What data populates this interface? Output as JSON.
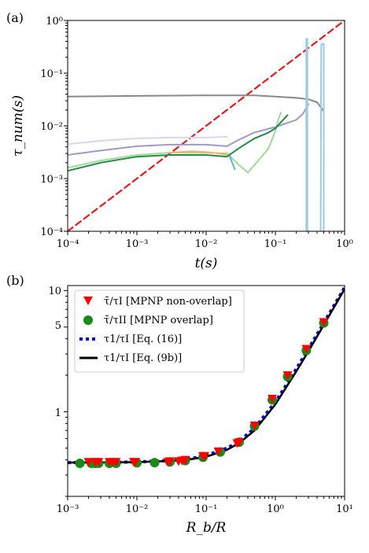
{
  "chart_data": [
    {
      "panel_label": "(a)",
      "type": "line",
      "xscale": "log",
      "yscale": "log",
      "xlim": [
        0.0001,
        1
      ],
      "ylim": [
        0.0001,
        1
      ],
      "xlabel": "t(s)",
      "ylabel": "τ_num(s)",
      "xtick_labels": [
        "10⁻⁴",
        "10⁻³",
        "10⁻²",
        "10⁻¹",
        "10⁰"
      ],
      "ytick_labels": [
        "10⁻⁴",
        "10⁻³",
        "10⁻²",
        "10⁻¹",
        "10⁰"
      ],
      "series": [
        {
          "color": "#e41a1c",
          "style": "dashed",
          "x": [
            0.0001,
            1
          ],
          "y": [
            0.0001,
            1
          ]
        },
        {
          "color": "#888888",
          "x": [
            0.0001,
            0.001,
            0.01,
            0.05,
            0.1,
            0.2,
            0.3,
            0.4,
            0.5
          ],
          "y": [
            0.036,
            0.037,
            0.038,
            0.038,
            0.036,
            0.034,
            0.032,
            0.028,
            0.019
          ]
        },
        {
          "color": "#d9d6ec",
          "x": [
            0.0001,
            0.0003,
            0.001,
            0.003,
            0.01,
            0.02
          ],
          "y": [
            0.0045,
            0.0052,
            0.0058,
            0.006,
            0.006,
            0.0062
          ]
        },
        {
          "color": "#9e9ac8",
          "x": [
            0.0001,
            0.0003,
            0.001,
            0.003,
            0.01,
            0.02,
            0.03,
            0.05,
            0.1,
            0.2,
            0.25,
            0.3
          ],
          "y": [
            0.0028,
            0.0034,
            0.0041,
            0.0044,
            0.0044,
            0.0041,
            0.0055,
            0.0075,
            0.0095,
            0.013,
            0.017,
            0.026
          ]
        },
        {
          "color": "#a1d99b",
          "x": [
            0.0001,
            0.0003,
            0.001,
            0.003,
            0.01,
            0.02,
            0.03,
            0.04,
            0.06,
            0.08,
            0.1,
            0.11,
            0.12
          ],
          "y": [
            0.0016,
            0.0022,
            0.0028,
            0.0031,
            0.0031,
            0.003,
            0.0018,
            0.0013,
            0.0024,
            0.0038,
            0.008,
            0.013,
            0.018
          ]
        },
        {
          "color": "#fdae6b",
          "x": [
            0.003,
            0.006,
            0.01,
            0.015,
            0.02
          ],
          "y": [
            0.0031,
            0.0033,
            0.0032,
            0.003,
            0.0028
          ]
        },
        {
          "color": "#238b45",
          "x": [
            0.0001,
            0.0003,
            0.001,
            0.003,
            0.01,
            0.02,
            0.03,
            0.05,
            0.08,
            0.1,
            0.15
          ],
          "y": [
            0.0014,
            0.002,
            0.0026,
            0.0028,
            0.0028,
            0.0026,
            0.0038,
            0.0058,
            0.0075,
            0.009,
            0.016
          ]
        },
        {
          "color": "#6baed6",
          "x": [
            0.022,
            0.026
          ],
          "y": [
            0.0026,
            0.0015
          ]
        },
        {
          "color": "#9ecae1",
          "x": [
            0.28,
            0.28,
            0.29,
            0.29
          ],
          "y": [
            0.0001,
            0.45,
            0.45,
            0.0001
          ]
        },
        {
          "color": "#9ecae1",
          "x": [
            0.45,
            0.46,
            0.5,
            0.5
          ],
          "y": [
            0.0001,
            0.35,
            0.36,
            0.0001
          ]
        }
      ]
    },
    {
      "panel_label": "(b)",
      "type": "scatter",
      "xscale": "log",
      "yscale": "log",
      "xlim": [
        0.001,
        10
      ],
      "ylim": [
        0.2,
        11
      ],
      "xlabel": "R_b/R",
      "ylabel": "",
      "xtick_labels": [
        "10⁻³",
        "10⁻²",
        "10⁻¹",
        "10⁰",
        "10¹"
      ],
      "ytick_labels": [
        "1",
        "5",
        "10"
      ],
      "legend": [
        {
          "label": "τ̄/τI [MPNP non-overlap]",
          "marker": "triangle",
          "color": "#ff0000"
        },
        {
          "label": "τ̄/τII [MPNP overlap]",
          "marker": "circle",
          "color": "#1a8a1a"
        },
        {
          "label": "τ1/τI [Eq. (16)]",
          "marker": "dotted-line",
          "color": "#0000ff"
        },
        {
          "label": "τ1/τI [Eq. (9b)]",
          "marker": "solid-line",
          "color": "#000000"
        }
      ],
      "series": [
        {
          "name": "τ̄/τI [MPNP non-overlap]",
          "x": [
            0.002,
            0.0025,
            0.0028,
            0.004,
            0.0045,
            0.005,
            0.009,
            0.0095,
            0.028,
            0.03,
            0.04,
            0.045,
            0.05,
            0.09,
            0.095,
            0.15,
            0.28,
            0.3,
            0.5,
            0.9,
            1.5,
            2.8,
            5
          ],
          "y": [
            0.385,
            0.385,
            0.385,
            0.385,
            0.385,
            0.385,
            0.385,
            0.385,
            0.385,
            0.39,
            0.39,
            0.395,
            0.4,
            0.43,
            0.43,
            0.47,
            0.55,
            0.56,
            0.77,
            1.28,
            2.0,
            3.3,
            5.5
          ]
        },
        {
          "name": "τ̄/τII [MPNP overlap]",
          "x": [
            0.0015,
            0.0022,
            0.0025,
            0.0028,
            0.004,
            0.005,
            0.01,
            0.018,
            0.03,
            0.05,
            0.09,
            0.16,
            0.3,
            0.5,
            0.9,
            1.5,
            2.8,
            5
          ],
          "y": [
            0.375,
            0.375,
            0.375,
            0.375,
            0.375,
            0.375,
            0.378,
            0.38,
            0.385,
            0.395,
            0.42,
            0.465,
            0.56,
            0.76,
            1.25,
            1.95,
            3.2,
            5.4
          ]
        },
        {
          "name": "τ1/τI [Eq. (16)]",
          "x": [
            0.001,
            0.003,
            0.01,
            0.03,
            0.06,
            0.1,
            0.2,
            0.3,
            0.5,
            1,
            2,
            3,
            5,
            10
          ],
          "y": [
            0.38,
            0.381,
            0.385,
            0.395,
            0.41,
            0.435,
            0.5,
            0.57,
            0.73,
            1.2,
            2.25,
            3.3,
            5.4,
            10.6
          ]
        },
        {
          "name": "τ1/τI [Eq. (9b)]",
          "x": [
            0.001,
            0.003,
            0.01,
            0.03,
            0.06,
            0.1,
            0.2,
            0.3,
            0.5,
            1,
            2,
            3,
            5,
            10
          ],
          "y": [
            0.38,
            0.381,
            0.384,
            0.392,
            0.405,
            0.425,
            0.485,
            0.55,
            0.7,
            1.15,
            2.15,
            3.15,
            5.2,
            10.3
          ]
        }
      ]
    }
  ]
}
